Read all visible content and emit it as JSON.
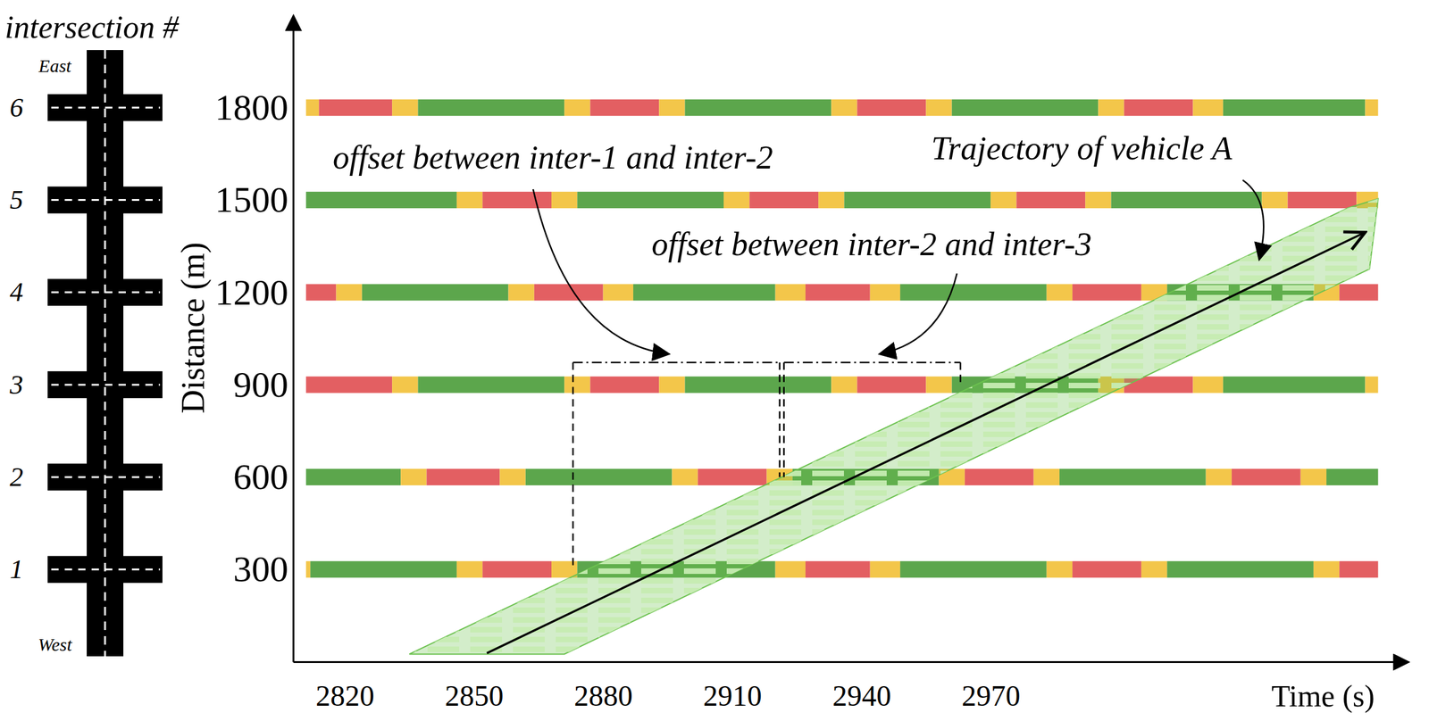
{
  "chart_data": {
    "type": "time_space",
    "x_label": "Time (s)",
    "y_label": "Distance (m)",
    "xlim": [
      2808,
      3067
    ],
    "xticks": [
      2820,
      2850,
      2880,
      2910,
      2940,
      2970
    ],
    "ylim": [
      0,
      2100
    ],
    "yticks": [
      300,
      600,
      900,
      1200,
      1500,
      1800
    ],
    "intersection_axis": {
      "title": "intersection #",
      "top": "East",
      "bottom": "West"
    },
    "signals": [
      {
        "intersection": 1,
        "distance": 300,
        "boundaries": [
          2811,
          2812,
          2846,
          2852,
          2868,
          2874,
          2920,
          2927,
          2942,
          2949,
          2983,
          2989,
          3005,
          3011,
          3045,
          3051,
          3060
        ],
        "colors": [
          "#f3c64a",
          "#5ca64c",
          "#f3c64a",
          "#e35f62",
          "#f3c64a",
          "#5ca64c",
          "#f3c64a",
          "#e35f62",
          "#f3c64a",
          "#5ca64c",
          "#f3c64a",
          "#e35f62",
          "#f3c64a",
          "#5ca64c",
          "#f3c64a",
          "#e35f62"
        ]
      },
      {
        "intersection": 2,
        "distance": 600,
        "boundaries": [
          2811,
          2833,
          2839,
          2856,
          2862,
          2896,
          2902,
          2918,
          2924,
          2958,
          2964,
          2980,
          2986,
          3020,
          3026,
          3042,
          3048,
          3060
        ],
        "colors": [
          "#5ca64c",
          "#f3c64a",
          "#e35f62",
          "#f3c64a",
          "#5ca64c",
          "#f3c64a",
          "#e35f62",
          "#f3c64a",
          "#5ca64c",
          "#f3c64a",
          "#e35f62",
          "#f3c64a",
          "#5ca64c",
          "#f3c64a",
          "#e35f62",
          "#f3c64a",
          "#5ca64c"
        ]
      },
      {
        "intersection": 3,
        "distance": 900,
        "boundaries": [
          2811,
          2831,
          2837,
          2871,
          2877,
          2893,
          2899,
          2933,
          2939,
          2955,
          2961,
          2995,
          3001,
          3017,
          3024,
          3057,
          3060
        ],
        "colors": [
          "#e35f62",
          "#f3c64a",
          "#5ca64c",
          "#f3c64a",
          "#e35f62",
          "#f3c64a",
          "#5ca64c",
          "#f3c64a",
          "#e35f62",
          "#f3c64a",
          "#5ca64c",
          "#f3c64a",
          "#e35f62",
          "#f3c64a",
          "#5ca64c",
          "#f3c64a"
        ]
      },
      {
        "intersection": 4,
        "distance": 1200,
        "boundaries": [
          2811,
          2818,
          2824,
          2858,
          2864,
          2880,
          2887,
          2920,
          2927,
          2942,
          2949,
          2983,
          2989,
          3005,
          3011,
          3045,
          3051,
          3060
        ],
        "colors": [
          "#e35f62",
          "#f3c64a",
          "#5ca64c",
          "#f3c64a",
          "#e35f62",
          "#f3c64a",
          "#5ca64c",
          "#f3c64a",
          "#e35f62",
          "#f3c64a",
          "#5ca64c",
          "#f3c64a",
          "#e35f62",
          "#f3c64a",
          "#5ca64c",
          "#f3c64a",
          "#e35f62"
        ]
      },
      {
        "intersection": 5,
        "distance": 1500,
        "boundaries": [
          2811,
          2846,
          2852,
          2868,
          2874,
          2908,
          2914,
          2930,
          2936,
          2970,
          2976,
          2992,
          2998,
          3033,
          3039,
          3055,
          3060
        ],
        "colors": [
          "#5ca64c",
          "#f3c64a",
          "#e35f62",
          "#f3c64a",
          "#5ca64c",
          "#f3c64a",
          "#e35f62",
          "#f3c64a",
          "#5ca64c",
          "#f3c64a",
          "#e35f62",
          "#f3c64a",
          "#5ca64c",
          "#f3c64a",
          "#e35f62",
          "#f3c64a"
        ]
      },
      {
        "intersection": 6,
        "distance": 1800,
        "boundaries": [
          2811,
          2814,
          2831,
          2837,
          2871,
          2877,
          2893,
          2899,
          2933,
          2939,
          2955,
          2961,
          2995,
          3001,
          3017,
          3024,
          3057,
          3060
        ],
        "colors": [
          "#f3c64a",
          "#e35f62",
          "#f3c64a",
          "#5ca64c",
          "#f3c64a",
          "#e35f62",
          "#f3c64a",
          "#5ca64c",
          "#f3c64a",
          "#e35f62",
          "#f3c64a",
          "#5ca64c",
          "#f3c64a",
          "#e35f62",
          "#f3c64a",
          "#5ca64c",
          "#f3c64a"
        ]
      }
    ],
    "trajectory_band": {
      "time": [
        2835,
        2871,
        3058,
        3060,
        3053
      ],
      "distance": [
        25,
        25,
        1276,
        1504,
        1474
      ],
      "color": "#6cc24f"
    },
    "vehicle": {
      "label": "Trajectory of vehicle A",
      "time": [
        2853,
        3057
      ],
      "distance": [
        28,
        1395
      ]
    },
    "offsets": [
      {
        "label": "offset between inter-1 and inter-2",
        "start": 2873,
        "end": 2921,
        "from_distance": 300,
        "to_distance": 600,
        "bracket_distance": 972
      },
      {
        "label": "offset between inter-2 and inter-3",
        "start": 2922,
        "end": 2963,
        "from_distance": 600,
        "to_distance": 900,
        "bracket_distance": 972
      }
    ]
  }
}
